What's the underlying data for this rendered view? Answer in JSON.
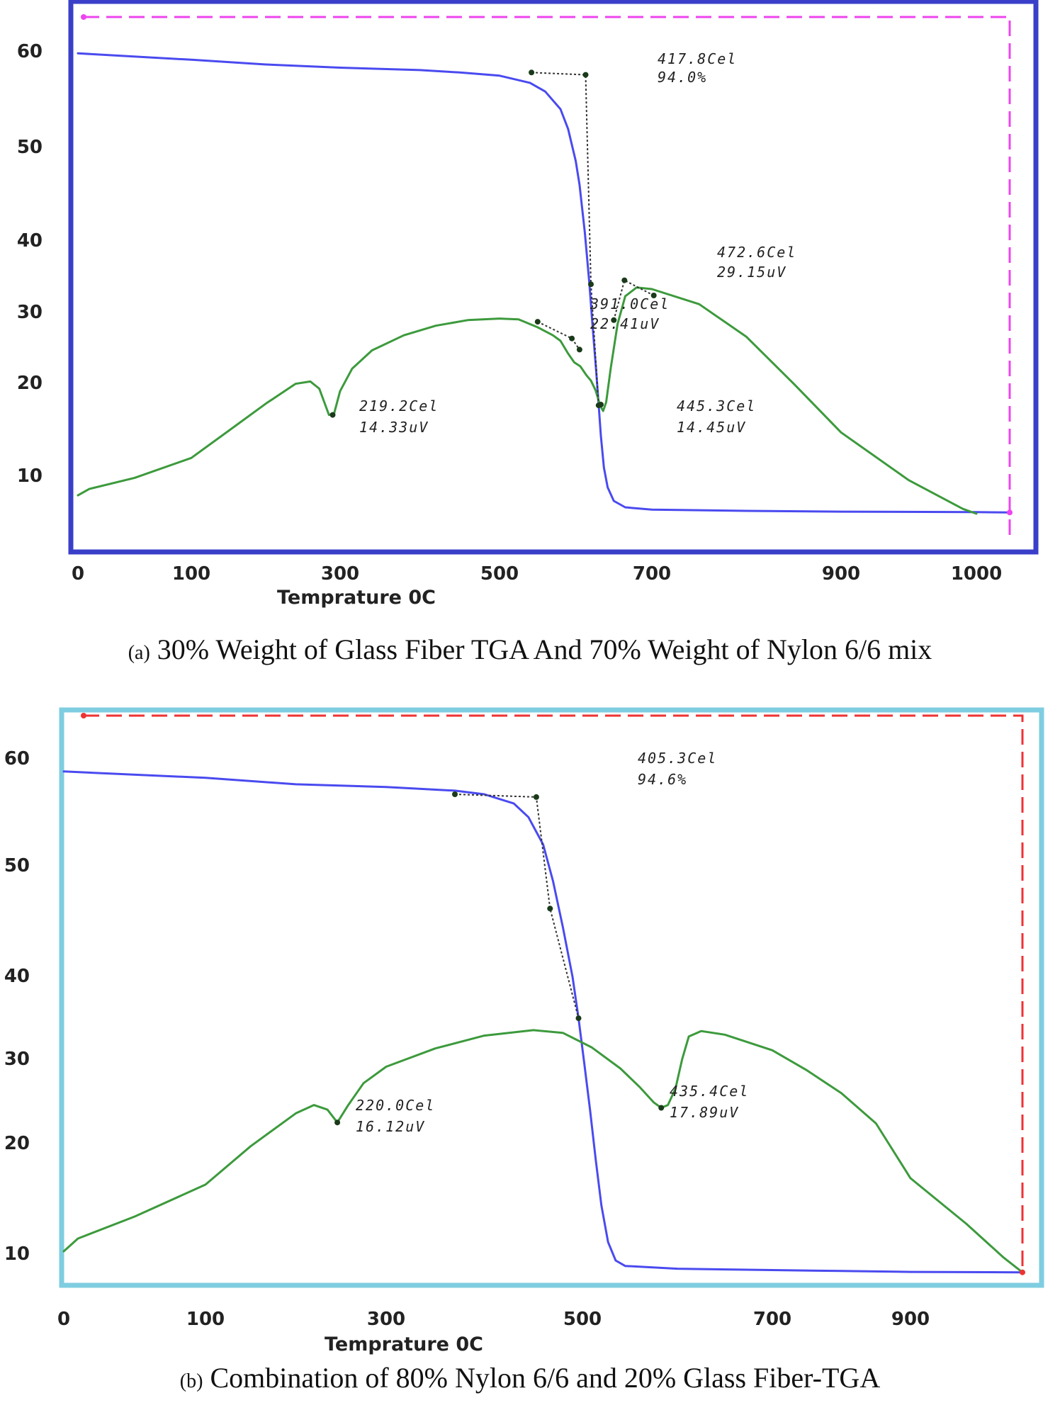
{
  "chart_data": [
    {
      "type": "line",
      "panel_tag": "(a)",
      "caption": "30% Weight of Glass Fiber TGA And 70% Weight of Nylon 6/6 mix",
      "xlabel": "Temprature 0C",
      "ylabel": "",
      "x_ticks": [
        "0",
        "100",
        "300",
        "500",
        "700",
        "900",
        "1000"
      ],
      "y_ticks": [
        "10",
        "20",
        "30",
        "40",
        "50",
        "60"
      ],
      "border_color": "#3a3fc9",
      "reference_line_color": "#ee44ee",
      "annotations": [
        {
          "lines": [
            "417.8Cel",
            "94.0%"
          ]
        },
        {
          "lines": [
            "472.6Cel",
            "29.15uV"
          ]
        },
        {
          "lines": [
            "391.0Cel",
            "22.41uV"
          ]
        },
        {
          "lines": [
            "219.2Cel",
            "14.33uV"
          ]
        },
        {
          "lines": [
            "445.3Cel",
            "14.45uV"
          ]
        }
      ],
      "series": [
        {
          "color": "#4a4af0",
          "points": [
            [
              0,
              63
            ],
            [
              100,
              62.2
            ],
            [
              200,
              61.6
            ],
            [
              300,
              61.2
            ],
            [
              400,
              60.9
            ],
            [
              450,
              60.6
            ],
            [
              500,
              60.2
            ],
            [
              540,
              59.3
            ],
            [
              560,
              58.2
            ],
            [
              580,
              56.0
            ],
            [
              590,
              53.5
            ],
            [
              600,
              49.5
            ],
            [
              605,
              46.5
            ],
            [
              612,
              40.5
            ],
            [
              618,
              34
            ],
            [
              622,
              29
            ],
            [
              627,
              23
            ],
            [
              630,
              19
            ],
            [
              633,
              15
            ],
            [
              637,
              11
            ],
            [
              642,
              8.5
            ],
            [
              650,
              6.8
            ],
            [
              665,
              6.0
            ],
            [
              700,
              5.7
            ],
            [
              800,
              5.55
            ],
            [
              900,
              5.45
            ],
            [
              1000,
              5.4
            ],
            [
              1040,
              5.35
            ]
          ]
        },
        {
          "color": "#3c9a3c",
          "points": [
            [
              0,
              7.5
            ],
            [
              10,
              8.3
            ],
            [
              50,
              9.7
            ],
            [
              100,
              12.2
            ],
            [
              150,
              15.6
            ],
            [
              200,
              19.0
            ],
            [
              240,
              21.5
            ],
            [
              260,
              21.8
            ],
            [
              272,
              20.9
            ],
            [
              285,
              17.6
            ],
            [
              292,
              17.8
            ],
            [
              300,
              20.6
            ],
            [
              315,
              23.4
            ],
            [
              340,
              25.7
            ],
            [
              380,
              27.6
            ],
            [
              420,
              28.8
            ],
            [
              460,
              29.5
            ],
            [
              500,
              29.7
            ],
            [
              525,
              29.6
            ],
            [
              550,
              28.6
            ],
            [
              570,
              27.6
            ],
            [
              580,
              26.9
            ],
            [
              590,
              25.3
            ],
            [
              598,
              24.2
            ],
            [
              606,
              23.7
            ],
            [
              614,
              22.6
            ],
            [
              620,
              21.9
            ],
            [
              626,
              20.7
            ],
            [
              632,
              18.8
            ],
            [
              636,
              18.1
            ],
            [
              640,
              19.2
            ],
            [
              646,
              23.5
            ],
            [
              655,
              29.0
            ],
            [
              665,
              32.5
            ],
            [
              680,
              33.6
            ],
            [
              700,
              33.4
            ],
            [
              750,
              31.5
            ],
            [
              800,
              27.4
            ],
            [
              850,
              21.5
            ],
            [
              900,
              15.4
            ],
            [
              950,
              9.4
            ],
            [
              990,
              5.8
            ],
            [
              1000,
              5.2
            ]
          ]
        }
      ]
    },
    {
      "type": "line",
      "panel_tag": "(b)",
      "caption": "Combination of 80% Nylon 6/6 and 20% Glass Fiber-TGA",
      "xlabel": "Temprature 0C",
      "ylabel": "",
      "x_ticks": [
        "0",
        "100",
        "300",
        "500",
        "700",
        "900"
      ],
      "y_ticks": [
        "10",
        "20",
        "30",
        "40",
        "50",
        "60"
      ],
      "border_color": "#7fcde0",
      "reference_line_color": "#ee3333",
      "annotations": [
        {
          "lines": [
            "405.3Cel",
            "94.6%"
          ]
        },
        {
          "lines": [
            "220.0Cel",
            "16.12uV"
          ]
        },
        {
          "lines": [
            "435.4Cel",
            "17.89uV"
          ]
        }
      ],
      "series": [
        {
          "color": "#4a4af0",
          "points": [
            [
              0,
              63
            ],
            [
              100,
              62.3
            ],
            [
              200,
              61.6
            ],
            [
              300,
              61.3
            ],
            [
              370,
              60.9
            ],
            [
              400,
              60.5
            ],
            [
              430,
              59.5
            ],
            [
              445,
              58.0
            ],
            [
              460,
              55.0
            ],
            [
              470,
              51.0
            ],
            [
              480,
              46.0
            ],
            [
              490,
              40.5
            ],
            [
              496,
              36.0
            ],
            [
              502,
              31.0
            ],
            [
              508,
              26.0
            ],
            [
              514,
              20.5
            ],
            [
              520,
              15.5
            ],
            [
              527,
              11.5
            ],
            [
              535,
              9.5
            ],
            [
              545,
              8.9
            ],
            [
              600,
              8.6
            ],
            [
              700,
              8.45
            ],
            [
              800,
              8.35
            ],
            [
              900,
              8.25
            ],
            [
              960,
              8.2
            ]
          ]
        },
        {
          "color": "#3c9a3c",
          "points": [
            [
              0,
              10.5
            ],
            [
              10,
              11.9
            ],
            [
              50,
              14.3
            ],
            [
              100,
              17.8
            ],
            [
              150,
              22.0
            ],
            [
              200,
              25.6
            ],
            [
              220,
              26.5
            ],
            [
              235,
              26.0
            ],
            [
              246,
              24.6
            ],
            [
              258,
              26.5
            ],
            [
              275,
              28.9
            ],
            [
              300,
              30.7
            ],
            [
              350,
              32.7
            ],
            [
              400,
              34.1
            ],
            [
              450,
              34.7
            ],
            [
              480,
              34.4
            ],
            [
              510,
              32.8
            ],
            [
              540,
              30.5
            ],
            [
              560,
              28.5
            ],
            [
              575,
              26.8
            ],
            [
              583,
              26.2
            ],
            [
              590,
              26.5
            ],
            [
              598,
              28.3
            ],
            [
              605,
              31.5
            ],
            [
              612,
              34.0
            ],
            [
              625,
              34.6
            ],
            [
              650,
              34.2
            ],
            [
              700,
              32.5
            ],
            [
              750,
              30.3
            ],
            [
              800,
              27.8
            ],
            [
              850,
              24.5
            ],
            [
              900,
              18.5
            ],
            [
              930,
              13.5
            ],
            [
              950,
              9.8
            ],
            [
              960,
              8.2
            ]
          ]
        }
      ]
    }
  ]
}
